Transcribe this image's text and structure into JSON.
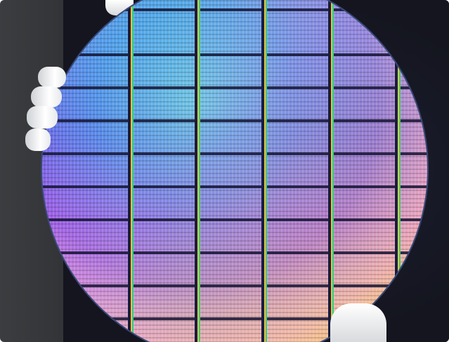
{
  "image": {
    "subject": "silicon-wafer",
    "colors": {
      "background_left": "#3b3d40",
      "background_right": "#161826",
      "wafer_edge": "#3a4a7a",
      "glove": "#ffffff"
    }
  }
}
